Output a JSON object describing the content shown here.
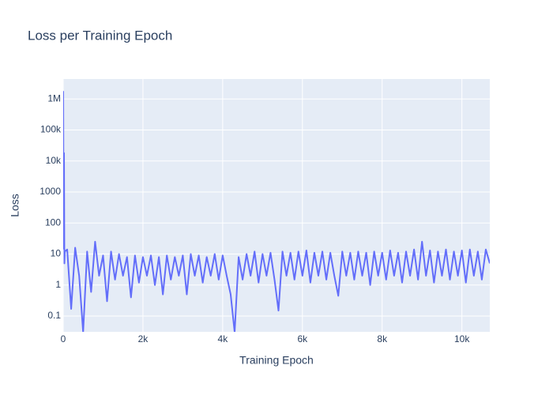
{
  "chart_data": {
    "type": "line",
    "title": "Loss per Training Epoch",
    "x_label": "Training Epoch",
    "y_label": "Loss",
    "log_y": true,
    "grid": true,
    "xlim": [
      0,
      10700
    ],
    "xticks": [
      0,
      {
        "value": 2000,
        "label": "2k"
      },
      {
        "value": 4000,
        "label": "4k"
      },
      {
        "value": 6000,
        "label": "6k"
      },
      {
        "value": 8000,
        "label": "8k"
      },
      {
        "value": 10000,
        "label": "10k"
      }
    ],
    "ylim": [
      0.031,
      4400000
    ],
    "yticks": [
      0.1,
      1,
      10,
      100,
      1000,
      {
        "value": 10000,
        "label": "10k"
      },
      {
        "value": 100000,
        "label": "100k"
      },
      {
        "value": 1000000,
        "label": "1M"
      }
    ],
    "series": [
      {
        "color": "#636efa",
        "x": [
          0,
          10,
          20,
          30,
          40,
          100,
          200,
          300,
          400,
          500,
          600,
          700,
          800,
          900,
          1000,
          1100,
          1200,
          1300,
          1400,
          1500,
          1600,
          1700,
          1800,
          1900,
          2000,
          2100,
          2200,
          2300,
          2400,
          2500,
          2600,
          2700,
          2800,
          2900,
          3000,
          3100,
          3200,
          3300,
          3400,
          3500,
          3600,
          3700,
          3800,
          3900,
          4000,
          4100,
          4200,
          4300,
          4400,
          4500,
          4600,
          4700,
          4800,
          4900,
          5000,
          5100,
          5200,
          5300,
          5400,
          5500,
          5600,
          5700,
          5800,
          5900,
          6000,
          6100,
          6200,
          6300,
          6400,
          6500,
          6600,
          6700,
          6800,
          6900,
          7000,
          7100,
          7200,
          7300,
          7400,
          7500,
          7600,
          7700,
          7800,
          7900,
          8000,
          8100,
          8200,
          8300,
          8400,
          8500,
          8600,
          8700,
          8800,
          8900,
          9000,
          9100,
          9200,
          9300,
          9400,
          9500,
          9600,
          9700,
          9800,
          9900,
          10000,
          10100,
          10200,
          10300,
          10400,
          10500,
          10600,
          10700
        ],
        "values": [
          1800000,
          15,
          18000,
          5,
          12,
          14,
          0.17,
          16,
          2,
          0.03,
          12,
          0.6,
          25,
          2,
          9,
          0.3,
          12,
          1.5,
          10,
          2,
          8,
          0.4,
          9,
          1.2,
          8,
          2,
          9,
          1,
          8,
          0.5,
          9,
          1.5,
          8,
          2,
          9,
          0.5,
          10,
          2,
          9,
          1.2,
          8,
          2,
          10,
          1.5,
          9,
          2,
          0.5,
          0.03,
          8,
          1.5,
          10,
          2,
          12,
          1.2,
          10,
          2,
          11,
          1.5,
          0.15,
          12,
          2,
          11,
          1.5,
          12,
          2,
          13,
          1.2,
          11,
          2,
          12,
          1.5,
          11,
          2,
          0.45,
          12,
          2,
          11,
          1.5,
          12,
          2,
          11,
          1,
          12,
          2,
          11,
          1.5,
          13,
          2,
          11,
          1.2,
          12,
          2,
          14,
          1.5,
          25,
          2,
          13,
          1.2,
          12,
          2,
          14,
          1.5,
          12,
          2,
          13,
          1.2,
          14,
          2,
          12,
          1.5,
          14,
          5
        ]
      }
    ]
  }
}
